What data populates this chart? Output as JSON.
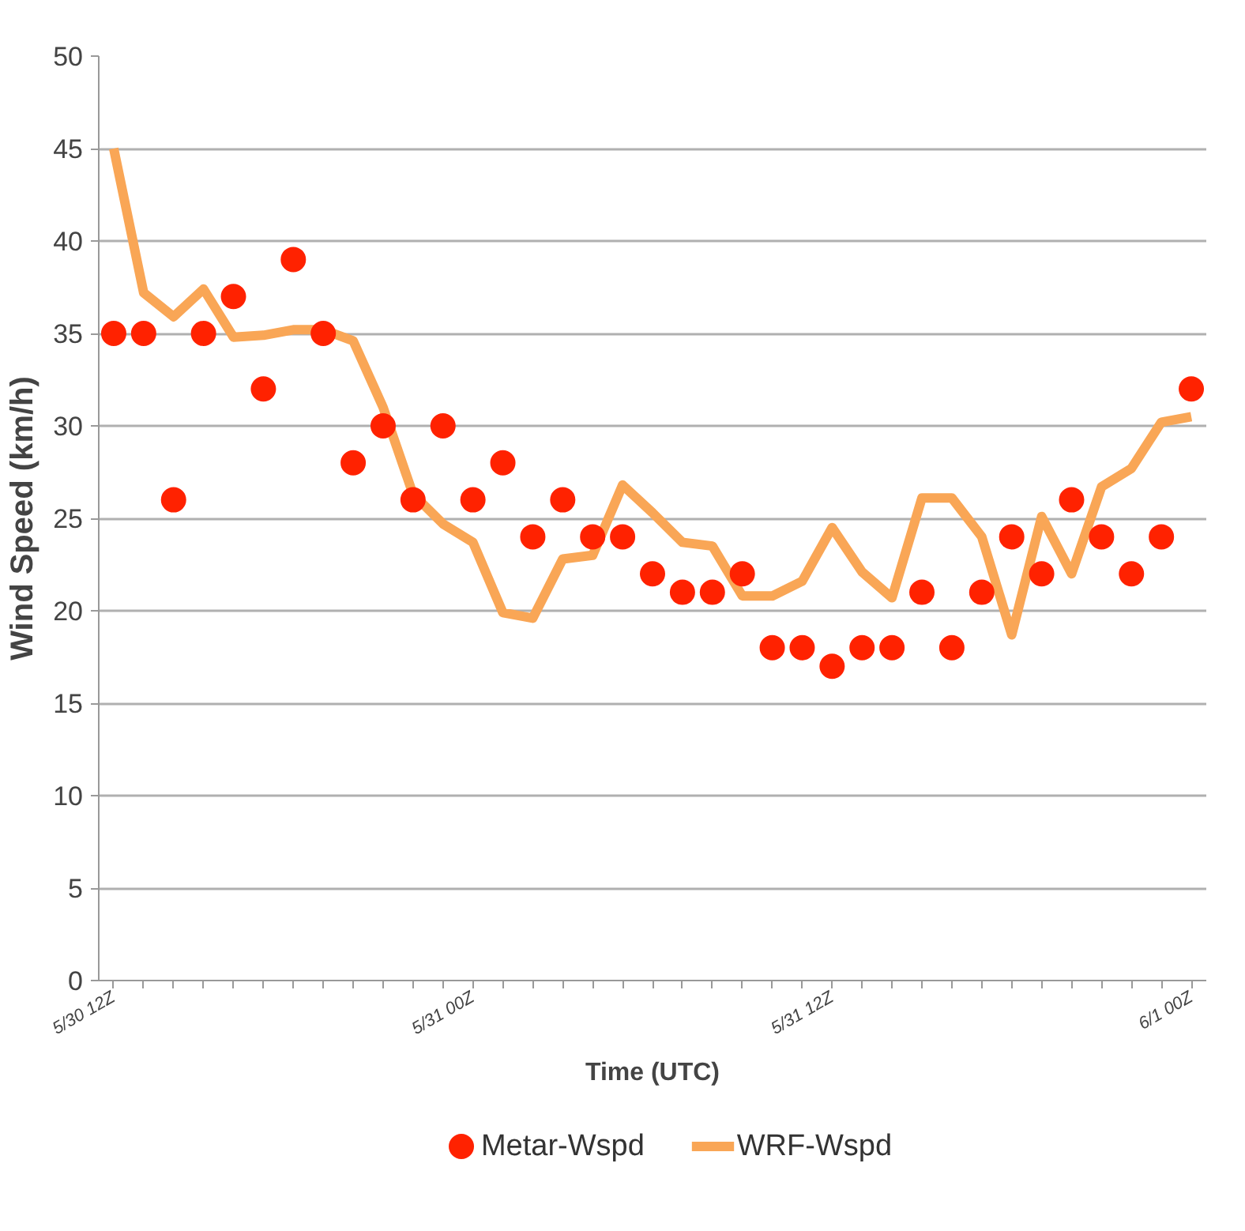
{
  "chart_data": {
    "type": "line",
    "xlabel": "Time (UTC)",
    "ylabel": "Wind Speed (km/h)",
    "categories": [
      "5/30 12Z",
      null,
      null,
      null,
      null,
      null,
      null,
      null,
      null,
      null,
      null,
      null,
      "5/31 00Z",
      null,
      null,
      null,
      null,
      null,
      null,
      null,
      null,
      null,
      null,
      null,
      "5/31 12Z",
      null,
      null,
      null,
      null,
      null,
      null,
      null,
      null,
      null,
      null,
      null,
      "6/1 00Z"
    ],
    "ylim": [
      0,
      50
    ],
    "yticks": [
      0,
      5,
      10,
      15,
      20,
      25,
      30,
      35,
      40,
      45,
      50
    ],
    "grid": "y",
    "legend": "bottom",
    "series": [
      {
        "name": "Metar-Wspd",
        "type": "scatter",
        "marker": "circle",
        "color": "#ff2200",
        "values": [
          35,
          35,
          26,
          35,
          37,
          32,
          39,
          35,
          28,
          30,
          26,
          30,
          26,
          28,
          24,
          26,
          24,
          24,
          22,
          21,
          21,
          22,
          18,
          18,
          17,
          18,
          18,
          21,
          18,
          21,
          24,
          22,
          26,
          24,
          22,
          24,
          32
        ]
      },
      {
        "name": "WRF-Wspd",
        "line_style": "solid",
        "color": "#f9a656",
        "values": [
          45,
          37.2,
          35.9,
          37.4,
          34.8,
          34.9,
          35.2,
          35.2,
          34.6,
          31,
          26.3,
          24.7,
          23.7,
          19.9,
          19.6,
          22.8,
          23,
          26.8,
          25.3,
          23.7,
          23.5,
          20.8,
          20.8,
          21.6,
          24.5,
          22.1,
          20.7,
          26.1,
          26.1,
          24,
          18.7,
          25.1,
          22,
          26.7,
          27.7,
          30.2,
          30.5
        ]
      }
    ]
  }
}
